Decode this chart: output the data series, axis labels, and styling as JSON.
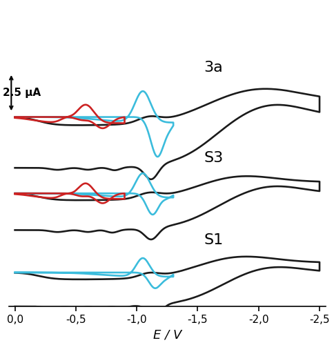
{
  "xlim_left": 0.05,
  "xlim_right": -2.55,
  "xlabel": "E / V",
  "xticks": [
    0.0,
    -0.5,
    -1.0,
    -1.5,
    -2.0,
    -2.5
  ],
  "xticklabels": [
    "0,0",
    "-0,5",
    "-1,0",
    "-1,5",
    "-2,0",
    "-2,5"
  ],
  "background_color": "#ffffff",
  "line_black": "#1a1a1a",
  "line_blue": "#3bbcdc",
  "line_red": "#cc2222",
  "label_3a": "3a",
  "label_S3": "S3",
  "label_S1": "S1",
  "scale_label": "2.5 μA",
  "tick_fontsize": 11,
  "xlabel_fontsize": 13,
  "off_3a": 5.5,
  "off_S3": 2.8,
  "off_S1": 0.0
}
